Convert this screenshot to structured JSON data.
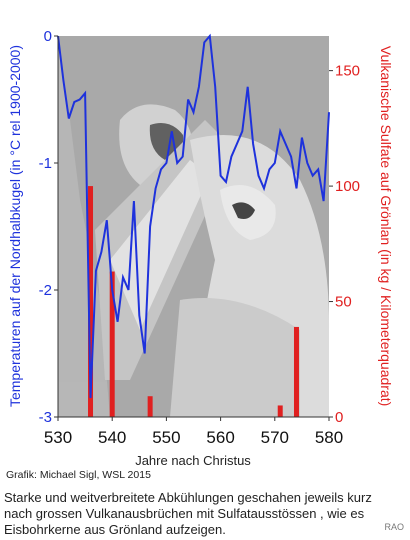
{
  "chart_data": {
    "type": "line",
    "x": [
      530,
      531,
      532,
      533,
      534,
      535,
      536,
      537,
      538,
      539,
      540,
      541,
      542,
      543,
      544,
      545,
      546,
      547,
      548,
      549,
      550,
      551,
      552,
      553,
      554,
      555,
      556,
      557,
      558,
      559,
      560,
      561,
      562,
      563,
      564,
      565,
      566,
      567,
      568,
      569,
      570,
      571,
      572,
      573,
      574,
      575,
      576,
      577,
      578,
      579,
      580
    ],
    "xlim": [
      530,
      580
    ],
    "xticks": [
      "530",
      "540",
      "550",
      "560",
      "570",
      "580"
    ],
    "xlabel": "Jahre nach Christus",
    "series": [
      {
        "axis": "left",
        "color": "#1e32dc",
        "values": [
          0.0,
          -0.35,
          -0.65,
          -0.52,
          -0.5,
          -0.45,
          -2.85,
          -1.85,
          -1.7,
          -1.45,
          -2.0,
          -2.25,
          -1.9,
          -2.0,
          -1.3,
          -2.2,
          -2.5,
          -1.5,
          -1.2,
          -1.05,
          -1.0,
          -0.75,
          -1.0,
          -0.95,
          -0.5,
          -0.6,
          -0.4,
          -0.05,
          0.0,
          -0.4,
          -1.1,
          -1.15,
          -0.95,
          -0.85,
          -0.75,
          -0.4,
          -0.85,
          -1.1,
          -1.2,
          -1.05,
          -1.0,
          -0.75,
          -0.85,
          -0.95,
          -1.2,
          -0.8,
          -1.0,
          -1.1,
          -1.05,
          -1.3,
          -0.6
        ],
        "ylim": [
          -3,
          0
        ],
        "yticks": [
          "0",
          "-1",
          "-2",
          "-3"
        ],
        "ylabel": "Temperaturen auf der Nordhalbkugel (in °C rel 1900-2000)"
      },
      {
        "axis": "right",
        "type": "bar",
        "color": "#e02020",
        "x": [
          536,
          540,
          547,
          571,
          574
        ],
        "values": [
          100,
          63,
          9,
          5,
          39
        ],
        "ylim": [
          0,
          165
        ],
        "yticks": [
          "0",
          "50",
          "100",
          "150"
        ],
        "ylabel": "Vulkanische Sulfate auf Grönlan (in kg / Kilometerquadrat)"
      }
    ]
  },
  "colors": {
    "temperature": "#1e32dc",
    "sulfate": "#e02020",
    "photo_background": "#a9a9a9"
  },
  "credit": "Grafik: Michael Sigl, WSL 2015",
  "caption": "Starke und weitverbreitete Abkühlungen geschahen jeweils kurz nach grossen Vulkanausbrüchen mit Sulfatausstössen , wie es Eisbohrkerne aus Grönland aufzeigen.",
  "watermark": "RAO"
}
